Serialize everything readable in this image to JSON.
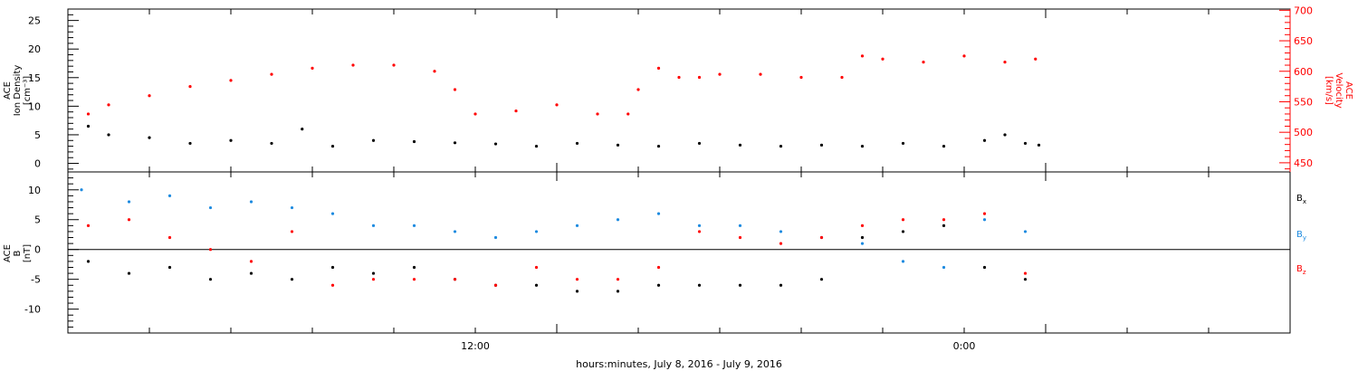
{
  "xaxis_label": "hours:minutes, July  8, 2016 - July  9, 2016",
  "chart_data": [
    {
      "type": "scatter",
      "panel": "top",
      "xrange": [
        "2016-07-08T02:00",
        "2016-07-09T08:00"
      ],
      "xticks": [
        {
          "x": "2016-07-08T12:00",
          "label": "12:00"
        },
        {
          "x": "2016-07-09T00:00",
          "label": "0:00"
        }
      ],
      "yleft": {
        "label_lines": [
          "ACE",
          "Ion Density",
          "[cm⁻³]"
        ],
        "range": [
          -1.5,
          27
        ],
        "ticks": [
          0,
          5,
          10,
          15,
          20,
          25
        ],
        "color": "#000000"
      },
      "yright": {
        "label_lines": [
          "ACE",
          "Velocity",
          "[km/s]"
        ],
        "range": [
          435,
          702
        ],
        "ticks": [
          450,
          500,
          550,
          600,
          650,
          700
        ],
        "color": "#ff0000"
      },
      "series": [
        {
          "axis": "left",
          "color": "#000000",
          "points": [
            [
              "2016-07-08T02:30",
              6.5
            ],
            [
              "2016-07-08T03:00",
              5.0
            ],
            [
              "2016-07-08T04:00",
              4.5
            ],
            [
              "2016-07-08T05:00",
              3.5
            ],
            [
              "2016-07-08T06:00",
              4.0
            ],
            [
              "2016-07-08T07:00",
              3.5
            ],
            [
              "2016-07-08T07:45",
              6.0
            ],
            [
              "2016-07-08T08:30",
              3.0
            ],
            [
              "2016-07-08T09:30",
              4.0
            ],
            [
              "2016-07-08T10:30",
              3.8
            ],
            [
              "2016-07-08T11:30",
              3.6
            ],
            [
              "2016-07-08T12:30",
              3.4
            ],
            [
              "2016-07-08T13:30",
              3.0
            ],
            [
              "2016-07-08T14:30",
              3.5
            ],
            [
              "2016-07-08T15:30",
              3.2
            ],
            [
              "2016-07-08T16:30",
              3.0
            ],
            [
              "2016-07-08T17:30",
              3.5
            ],
            [
              "2016-07-08T18:30",
              3.2
            ],
            [
              "2016-07-08T19:30",
              3.0
            ],
            [
              "2016-07-08T20:30",
              3.2
            ],
            [
              "2016-07-08T21:30",
              3.0
            ],
            [
              "2016-07-08T22:30",
              3.5
            ],
            [
              "2016-07-08T23:30",
              3.0
            ],
            [
              "2016-07-09T00:30",
              4.0
            ],
            [
              "2016-07-09T01:00",
              5.0
            ],
            [
              "2016-07-09T01:30",
              3.5
            ],
            [
              "2016-07-09T01:50",
              3.2
            ]
          ]
        },
        {
          "axis": "right",
          "color": "#ff0000",
          "points": [
            [
              "2016-07-08T02:30",
              530
            ],
            [
              "2016-07-08T03:00",
              545
            ],
            [
              "2016-07-08T04:00",
              560
            ],
            [
              "2016-07-08T05:00",
              575
            ],
            [
              "2016-07-08T06:00",
              585
            ],
            [
              "2016-07-08T07:00",
              595
            ],
            [
              "2016-07-08T08:00",
              605
            ],
            [
              "2016-07-08T09:00",
              610
            ],
            [
              "2016-07-08T10:00",
              610
            ],
            [
              "2016-07-08T11:00",
              600
            ],
            [
              "2016-07-08T11:30",
              570
            ],
            [
              "2016-07-08T12:00",
              530
            ],
            [
              "2016-07-08T13:00",
              535
            ],
            [
              "2016-07-08T14:00",
              545
            ],
            [
              "2016-07-08T15:00",
              530
            ],
            [
              "2016-07-08T15:45",
              530
            ],
            [
              "2016-07-08T16:00",
              570
            ],
            [
              "2016-07-08T16:30",
              605
            ],
            [
              "2016-07-08T17:00",
              590
            ],
            [
              "2016-07-08T17:30",
              590
            ],
            [
              "2016-07-08T18:00",
              595
            ],
            [
              "2016-07-08T19:00",
              595
            ],
            [
              "2016-07-08T20:00",
              590
            ],
            [
              "2016-07-08T21:00",
              590
            ],
            [
              "2016-07-08T21:30",
              625
            ],
            [
              "2016-07-08T22:00",
              620
            ],
            [
              "2016-07-08T23:00",
              615
            ],
            [
              "2016-07-09T00:00",
              625
            ],
            [
              "2016-07-09T01:00",
              615
            ],
            [
              "2016-07-09T01:45",
              620
            ]
          ]
        }
      ]
    },
    {
      "type": "scatter",
      "panel": "bottom",
      "xrange": [
        "2016-07-08T02:00",
        "2016-07-09T08:00"
      ],
      "yleft": {
        "label_lines": [
          "ACE",
          "B",
          "[nT]"
        ],
        "range": [
          -14,
          13
        ],
        "ticks": [
          -10,
          -5,
          0,
          5,
          10
        ],
        "color": "#000000"
      },
      "zero_line": true,
      "legend": [
        {
          "base": "B",
          "sub": "x",
          "color": "#000000"
        },
        {
          "base": "B",
          "sub": "y",
          "color": "#1e8be0"
        },
        {
          "base": "B",
          "sub": "z",
          "color": "#ff0000"
        }
      ],
      "series": [
        {
          "name": "Bx",
          "color": "#000000",
          "points": [
            [
              "2016-07-08T02:30",
              -2
            ],
            [
              "2016-07-08T03:30",
              -4
            ],
            [
              "2016-07-08T04:30",
              -3
            ],
            [
              "2016-07-08T05:30",
              -5
            ],
            [
              "2016-07-08T06:30",
              -4
            ],
            [
              "2016-07-08T07:30",
              -5
            ],
            [
              "2016-07-08T08:30",
              -3
            ],
            [
              "2016-07-08T09:30",
              -4
            ],
            [
              "2016-07-08T10:30",
              -3
            ],
            [
              "2016-07-08T11:30",
              -5
            ],
            [
              "2016-07-08T12:30",
              -6
            ],
            [
              "2016-07-08T13:30",
              -6
            ],
            [
              "2016-07-08T14:30",
              -7
            ],
            [
              "2016-07-08T15:30",
              -7
            ],
            [
              "2016-07-08T16:30",
              -6
            ],
            [
              "2016-07-08T17:30",
              -6
            ],
            [
              "2016-07-08T18:30",
              -6
            ],
            [
              "2016-07-08T19:30",
              -6
            ],
            [
              "2016-07-08T20:30",
              -5
            ],
            [
              "2016-07-08T21:30",
              2
            ],
            [
              "2016-07-08T22:30",
              3
            ],
            [
              "2016-07-08T23:30",
              4
            ],
            [
              "2016-07-09T00:30",
              -3
            ],
            [
              "2016-07-09T01:30",
              -5
            ]
          ]
        },
        {
          "name": "By",
          "color": "#1e8be0",
          "points": [
            [
              "2016-07-08T02:20",
              10
            ],
            [
              "2016-07-08T03:30",
              8
            ],
            [
              "2016-07-08T04:30",
              9
            ],
            [
              "2016-07-08T05:30",
              7
            ],
            [
              "2016-07-08T06:30",
              8
            ],
            [
              "2016-07-08T07:30",
              7
            ],
            [
              "2016-07-08T08:30",
              6
            ],
            [
              "2016-07-08T09:30",
              4
            ],
            [
              "2016-07-08T10:30",
              4
            ],
            [
              "2016-07-08T11:30",
              3
            ],
            [
              "2016-07-08T12:30",
              2
            ],
            [
              "2016-07-08T13:30",
              3
            ],
            [
              "2016-07-08T14:30",
              4
            ],
            [
              "2016-07-08T15:30",
              5
            ],
            [
              "2016-07-08T16:30",
              6
            ],
            [
              "2016-07-08T17:30",
              4
            ],
            [
              "2016-07-08T18:30",
              4
            ],
            [
              "2016-07-08T19:30",
              3
            ],
            [
              "2016-07-08T20:30",
              2
            ],
            [
              "2016-07-08T21:30",
              1
            ],
            [
              "2016-07-08T22:30",
              -2
            ],
            [
              "2016-07-08T23:30",
              -3
            ],
            [
              "2016-07-09T00:30",
              5
            ],
            [
              "2016-07-09T01:30",
              3
            ]
          ]
        },
        {
          "name": "Bz",
          "color": "#ff0000",
          "points": [
            [
              "2016-07-08T02:30",
              4
            ],
            [
              "2016-07-08T03:30",
              5
            ],
            [
              "2016-07-08T04:30",
              2
            ],
            [
              "2016-07-08T05:30",
              0
            ],
            [
              "2016-07-08T06:30",
              -2
            ],
            [
              "2016-07-08T07:30",
              3
            ],
            [
              "2016-07-08T08:30",
              -6
            ],
            [
              "2016-07-08T09:30",
              -5
            ],
            [
              "2016-07-08T10:30",
              -5
            ],
            [
              "2016-07-08T11:30",
              -5
            ],
            [
              "2016-07-08T12:30",
              -6
            ],
            [
              "2016-07-08T13:30",
              -3
            ],
            [
              "2016-07-08T14:30",
              -5
            ],
            [
              "2016-07-08T15:30",
              -5
            ],
            [
              "2016-07-08T16:30",
              -3
            ],
            [
              "2016-07-08T17:30",
              3
            ],
            [
              "2016-07-08T18:30",
              2
            ],
            [
              "2016-07-08T19:30",
              1
            ],
            [
              "2016-07-08T20:30",
              2
            ],
            [
              "2016-07-08T21:30",
              4
            ],
            [
              "2016-07-08T22:30",
              5
            ],
            [
              "2016-07-08T23:30",
              5
            ],
            [
              "2016-07-09T00:30",
              6
            ],
            [
              "2016-07-09T01:30",
              -4
            ]
          ]
        }
      ]
    }
  ]
}
